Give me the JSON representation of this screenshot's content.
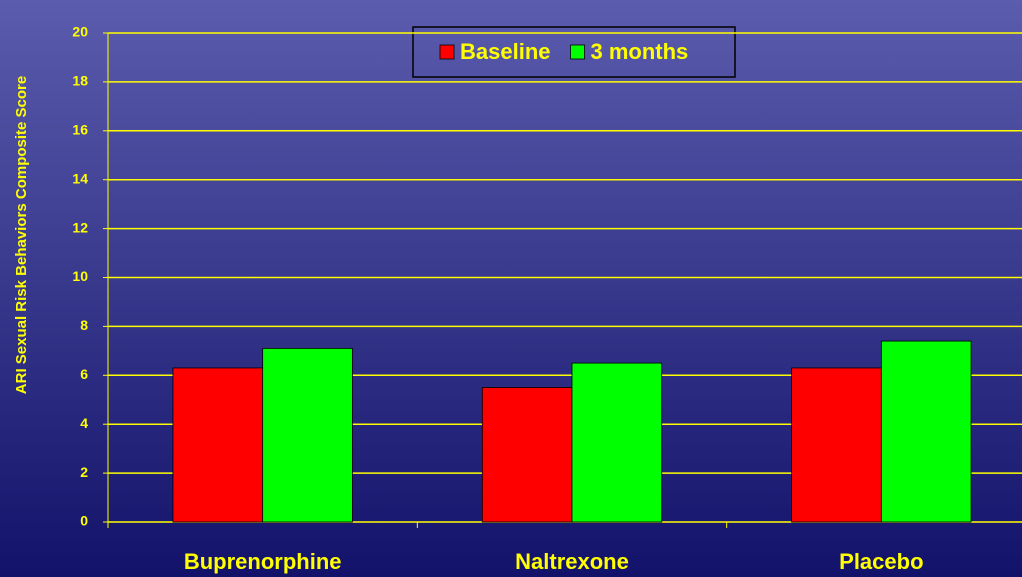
{
  "chart_data": {
    "type": "bar",
    "y_label": "ARI Sexual Risk Behaviors Composite Score",
    "categories": [
      "Buprenorphine",
      "Naltrexone",
      "Placebo"
    ],
    "series": [
      {
        "name": "Baseline",
        "color": "#ff0000",
        "values": [
          6.3,
          5.5,
          6.3
        ]
      },
      {
        "name": "3 months",
        "color": "#00ff00",
        "values": [
          7.1,
          6.5,
          7.4
        ]
      }
    ],
    "ylim": [
      0,
      20
    ],
    "yticks": [
      0,
      2,
      4,
      6,
      8,
      10,
      12,
      14,
      16,
      18,
      20
    ],
    "grid": true,
    "legend": "top"
  }
}
